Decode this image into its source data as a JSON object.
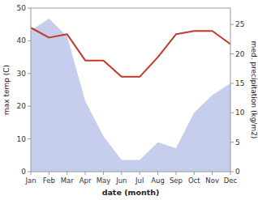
{
  "chart_data": {
    "type": "line",
    "categories": [
      "Jan",
      "Feb",
      "Mar",
      "Apr",
      "May",
      "Jun",
      "Jul",
      "Aug",
      "Sep",
      "Oct",
      "Nov",
      "Dec"
    ],
    "series": [
      {
        "type": "area",
        "axis": "y2",
        "color": "#b8c0e8",
        "values": [
          24,
          26,
          23,
          12,
          6,
          2,
          2,
          5,
          4,
          10,
          13,
          15
        ]
      },
      {
        "type": "line",
        "color": "#c0392b",
        "values": [
          44,
          41,
          42,
          34,
          34,
          29,
          29,
          35,
          42,
          43,
          43,
          39
        ]
      }
    ],
    "x_label": "date (month)",
    "y_label": "max temp (C)",
    "y2_label": "med. precipitation (kg/m2)",
    "ylim": [
      0,
      50
    ],
    "yticks": [
      0,
      10,
      20,
      30,
      40,
      50
    ],
    "y2lim": [
      0,
      27.78
    ],
    "y2ticks": [
      0,
      5,
      10,
      15,
      20,
      25
    ],
    "grid": false
  }
}
